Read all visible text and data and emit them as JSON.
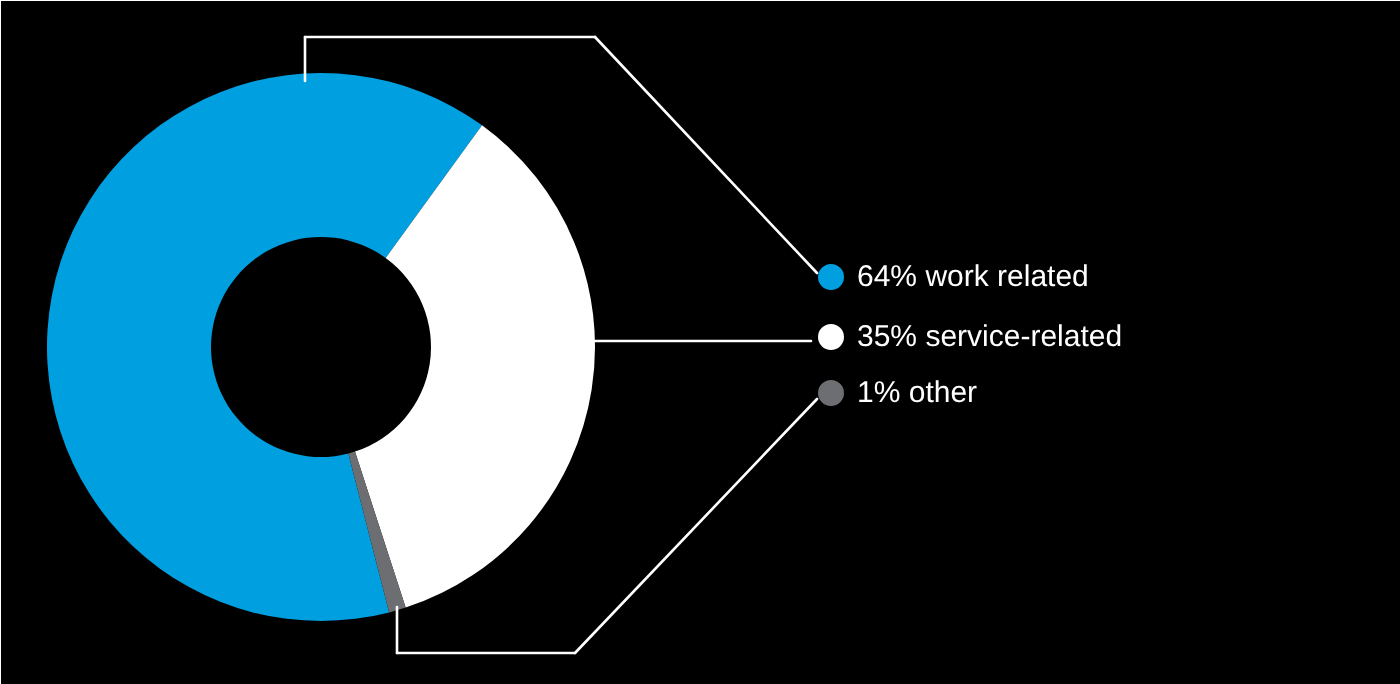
{
  "chart_data": {
    "type": "donut",
    "categories": [
      "work related",
      "service-related",
      "other"
    ],
    "values": [
      64,
      35,
      1
    ],
    "value_labels": [
      "64%",
      "35%",
      "1%"
    ],
    "colors": [
      "#009fdf",
      "#ffffff",
      "#6d6e71"
    ],
    "legend": "right"
  }
}
